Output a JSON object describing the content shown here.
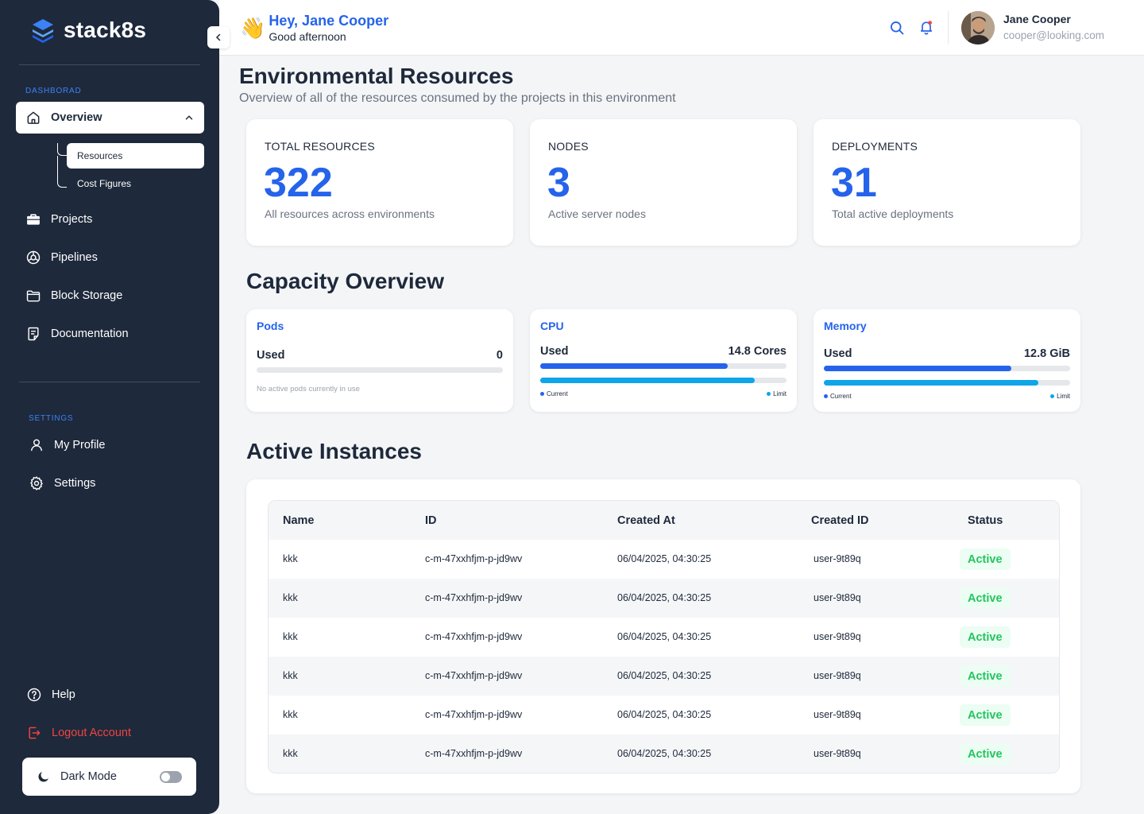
{
  "brand": {
    "name": "stack8s"
  },
  "sidebar": {
    "dashboard_label": "DASHBORAD",
    "overview": "Overview",
    "sub_items": [
      "Resources",
      "Cost Figures"
    ],
    "items": [
      "Projects",
      "Pipelines",
      "Block Storage",
      "Documentation"
    ],
    "settings_label": "SETTINGS",
    "settings_items": [
      "My Profile",
      "Settings"
    ],
    "help": "Help",
    "logout": "Logout Account",
    "dark_mode": "Dark Mode",
    "dark_mode_on": false,
    "logout_color": "#EF4444",
    "accent": "#3B82F6"
  },
  "header": {
    "greeting": "Hey, Jane Cooper",
    "greeting_emoji": "👋",
    "sub": "Good afternoon",
    "user_name": "Jane Cooper",
    "user_email": "cooper@looking.com"
  },
  "page": {
    "title": "Environmental Resources",
    "subtitle": "Overview of all of the resources consumed by the projects in this environment"
  },
  "stats": [
    {
      "label": "TOTAL RESOURCES",
      "value": "322",
      "desc": "All resources across environments"
    },
    {
      "label": "NODES",
      "value": "3",
      "desc": "Active server nodes"
    },
    {
      "label": "DEPLOYMENTS",
      "value": "31",
      "desc": "Total active deployments"
    }
  ],
  "capacity": {
    "title": "Capacity Overview",
    "pods": {
      "title": "Pods",
      "used_label": "Used",
      "value": "0",
      "note": "No active pods currently in use"
    },
    "cpu": {
      "title": "CPU",
      "used_label": "Used",
      "value": "14.8 Cores",
      "current_pct": 76,
      "limit_pct": 87,
      "current_label": "Current",
      "limit_label": "Limit"
    },
    "memory": {
      "title": "Memory",
      "used_label": "Used",
      "value": "12.8 GiB",
      "current_pct": 76,
      "limit_pct": 87,
      "current_label": "Current",
      "limit_label": "Limit"
    },
    "colors": {
      "current": "#2563EB",
      "limit": "#0EA5E9"
    }
  },
  "instances": {
    "title": "Active Instances",
    "columns": [
      "Name",
      "ID",
      "Created At",
      "Created ID",
      "Status"
    ],
    "rows": [
      [
        "kkk",
        "c-m-47xxhfjm-p-jd9wv",
        "06/04/2025, 04:30:25",
        "user-9t89q",
        "Active"
      ],
      [
        "kkk",
        "c-m-47xxhfjm-p-jd9wv",
        "06/04/2025, 04:30:25",
        "user-9t89q",
        "Active"
      ],
      [
        "kkk",
        "c-m-47xxhfjm-p-jd9wv",
        "06/04/2025, 04:30:25",
        "user-9t89q",
        "Active"
      ],
      [
        "kkk",
        "c-m-47xxhfjm-p-jd9wv",
        "06/04/2025, 04:30:25",
        "user-9t89q",
        "Active"
      ],
      [
        "kkk",
        "c-m-47xxhfjm-p-jd9wv",
        "06/04/2025, 04:30:25",
        "user-9t89q",
        "Active"
      ],
      [
        "kkk",
        "c-m-47xxhfjm-p-jd9wv",
        "06/04/2025, 04:30:25",
        "user-9t89q",
        "Active"
      ]
    ]
  }
}
